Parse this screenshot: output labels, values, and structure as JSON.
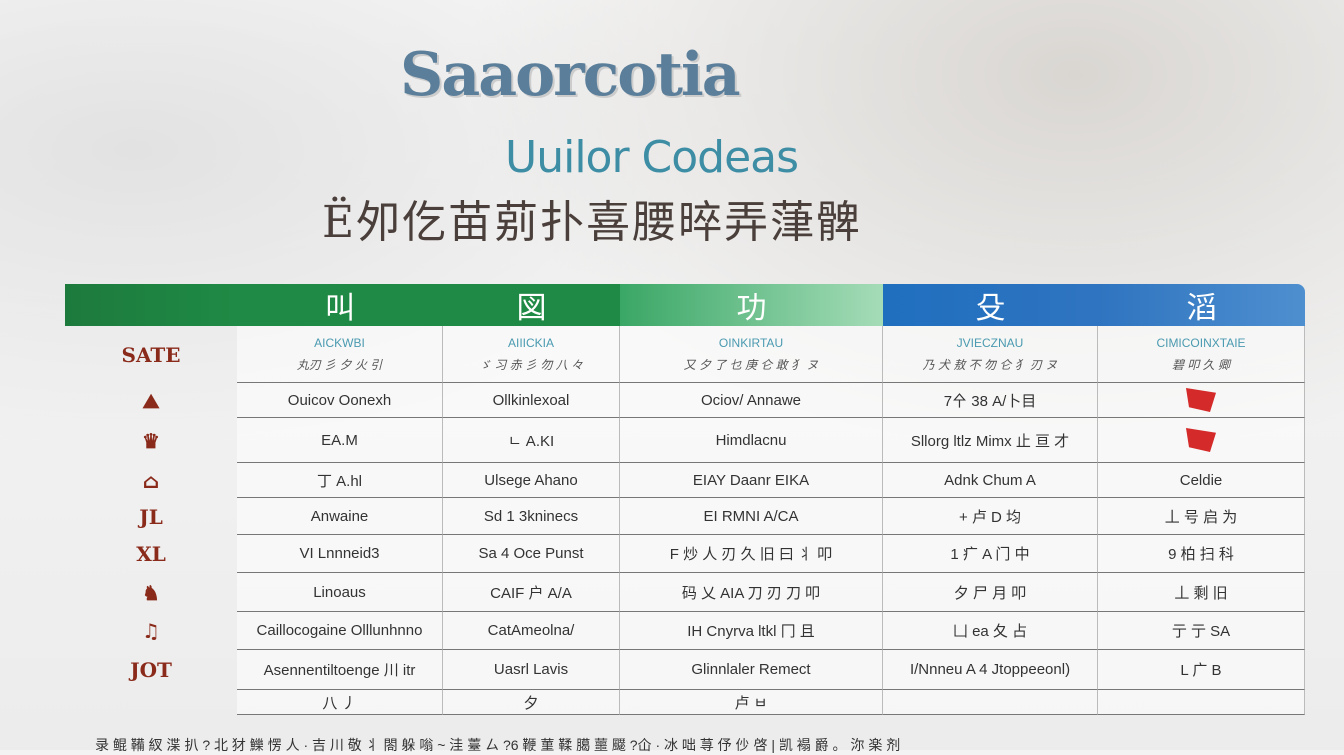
{
  "titles": {
    "line1": "Saaorcotia",
    "line2": "Uuilor Codeas",
    "line3": "Ё夘仡苗莂扑喜腰晬弄葏髀"
  },
  "colors": {
    "green_dark": "#1f8a45",
    "green_light": "#7fcf9a",
    "blue": "#2f74c0",
    "blue_light": "#4e8fcf"
  },
  "columns": [
    {
      "header": "叫",
      "sub_en": "AICKWBI",
      "sub_zh": "丸刃 彡 夕 火 引"
    },
    {
      "header": "図",
      "sub_en": "AIIICKIA",
      "sub_zh": "ゞ 习 赤 彡 勿 八 々"
    },
    {
      "header": "功",
      "sub_en": "OINKIRTAU",
      "sub_zh": "又 夕 了 乜 庚 仑 敢 犭 ヌ"
    },
    {
      "header": "殳",
      "sub_en": "JVIECZNAU",
      "sub_zh": "乃 犬 敖 不 勿 仑 犭 刃 ヌ"
    },
    {
      "header": "滔",
      "sub_en": "CIMICOINXTAIE",
      "sub_zh": "碧 叩 久 卿"
    }
  ],
  "row_logos": [
    "SATE",
    "⛰",
    "♛",
    "⌂",
    "JL",
    "XL",
    "♞",
    "♫",
    "JOT"
  ],
  "rows": [
    [
      "Ouicov Oonexh",
      "Ollkinlexoal",
      "Ociov/ Annawe",
      "7㐃 38 A/卜目",
      ""
    ],
    [
      "EA.M",
      "ㄴ A.KI",
      "Himdlacnu",
      "Sllorg ltlz Mimx 止 亘 才",
      ""
    ],
    [
      "丁 A.hl",
      "Ulsege Ahano",
      "EIAY Daanr EIKA",
      "Adnk Chum A",
      "Celdie"
    ],
    [
      "Anwaine",
      "Sd 1 3kninecs",
      "EI RMNI A/CA",
      "+ 卢 D 均",
      "丄 号 启 为"
    ],
    [
      "VI Lnnneid3",
      "Sa 4 Oce Punst",
      "F 炒 人 刃 久 旧 曰 丬 叩",
      "1 疒 A 门 中",
      "9 柏 扫 科"
    ],
    [
      "Linoaus",
      "CAIF 户 A/A",
      "码 乂 AIA 刀 刃 刀 叩",
      "夕 尸 月 叩",
      "丄 剩 旧"
    ],
    [
      "Caillocogaine Olllunhnno",
      "CatAmeolna/",
      "IH Cnyrva ltkl 冂 且",
      "凵 ea 夂 占",
      "亍 亍 SA"
    ],
    [
      "Asennentiltoenge 川 itr",
      "Uasrl Lavis",
      "Glinnlaler Remect",
      "I/Nnneu A 4 Jtoppeeonl)",
      "L 广 B"
    ],
    [
      "八 丿",
      "夕",
      "卢 ㅂ",
      "",
      ""
    ]
  ],
  "footer": "录 鲲 鞴 紁 渫 扒 ?  北 犲 鱳 愣 人  · 吉 川 敬 丬 閤 躲 嗡 ~ 洼 薹 ㄙ  ?6 鞭 菫 鞣 臈 蘁 飋 ?仚   · 冰 咄 荨 伃 仯 啓   | 凯 褟 爵 。 沵 楽 剂"
}
